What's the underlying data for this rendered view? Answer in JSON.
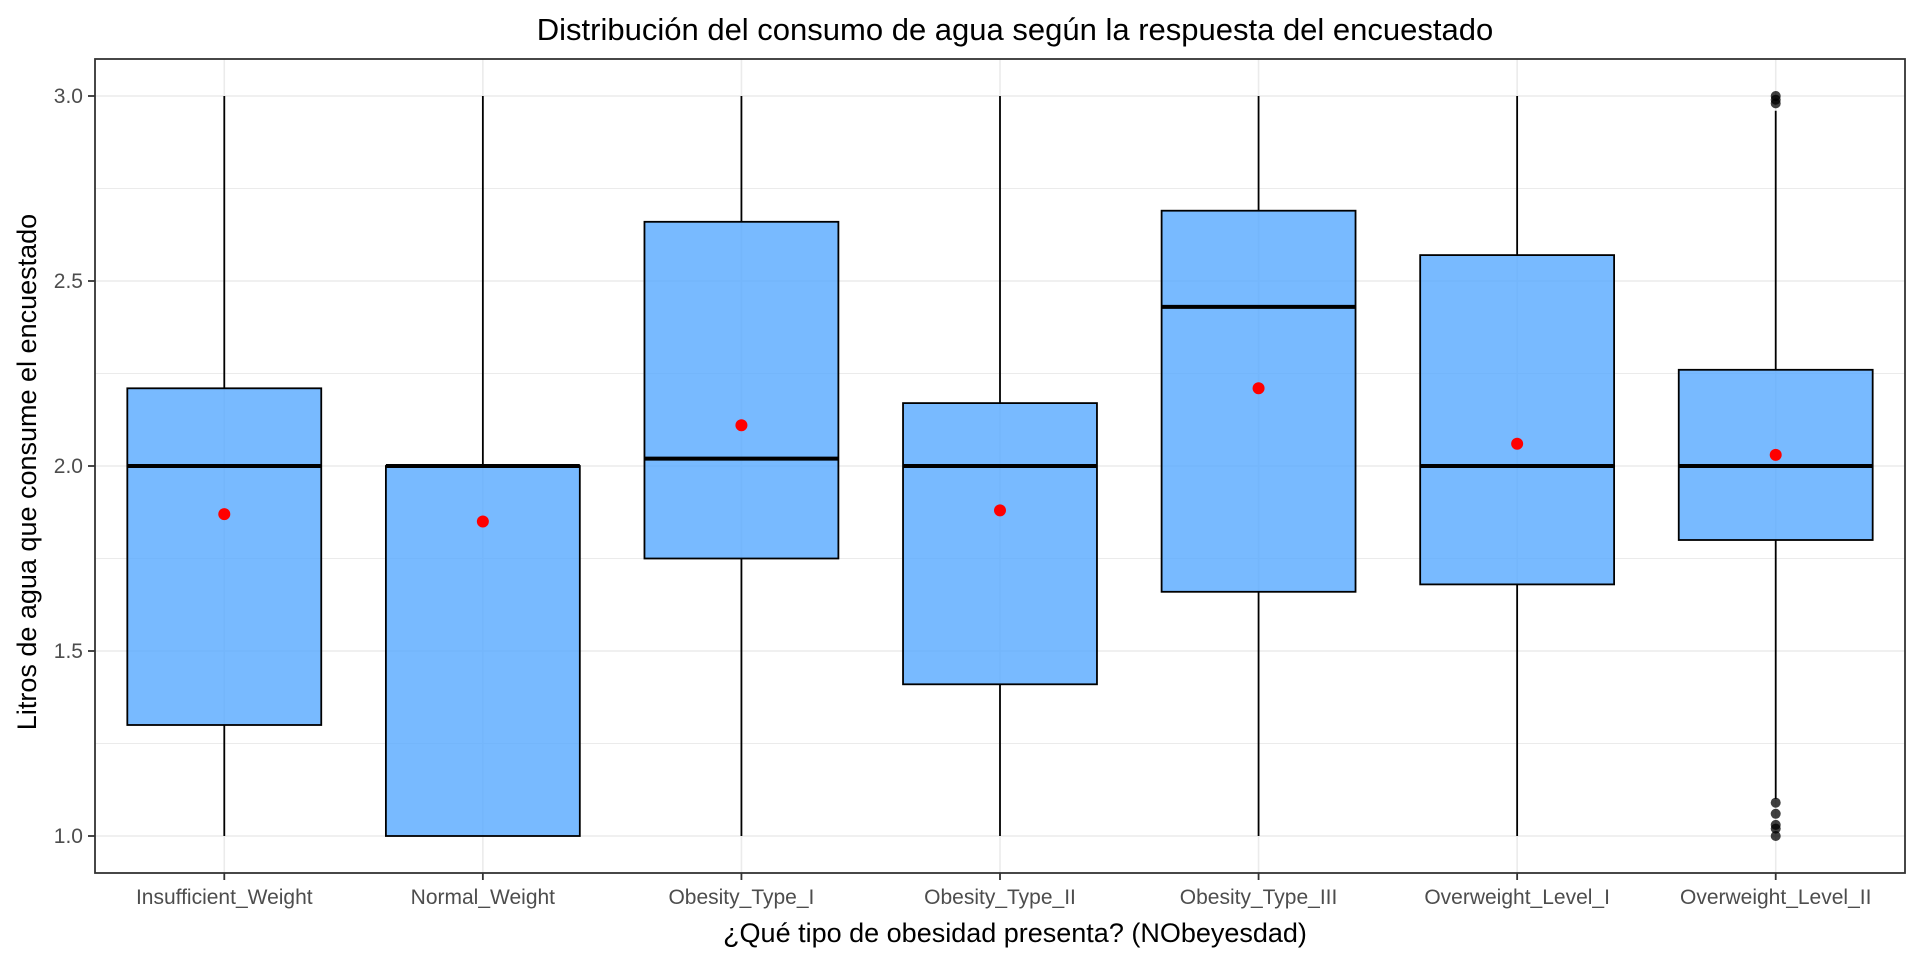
{
  "chart_data": {
    "type": "boxplot",
    "title": "Distribución del consumo de agua según la respuesta del encuestado",
    "xlabel": "¿Qué tipo de obesidad presenta? (NObeyesdad)",
    "ylabel": "Litros de agua que consume el encuestado",
    "categories": [
      "Insufficient_Weight",
      "Normal_Weight",
      "Obesity_Type_I",
      "Obesity_Type_II",
      "Obesity_Type_III",
      "Overweight_Level_I",
      "Overweight_Level_II"
    ],
    "boxes": [
      {
        "min": 1.0,
        "q1": 1.3,
        "median": 2.0,
        "q3": 2.21,
        "max": 3.0,
        "mean": 1.87,
        "outliers": []
      },
      {
        "min": 1.0,
        "q1": 1.0,
        "median": 2.0,
        "q3": 2.0,
        "max": 3.0,
        "mean": 1.85,
        "outliers": []
      },
      {
        "min": 1.0,
        "q1": 1.75,
        "median": 2.02,
        "q3": 2.66,
        "max": 3.0,
        "mean": 2.11,
        "outliers": []
      },
      {
        "min": 1.0,
        "q1": 1.41,
        "median": 2.0,
        "q3": 2.17,
        "max": 3.0,
        "mean": 1.88,
        "outliers": []
      },
      {
        "min": 1.0,
        "q1": 1.66,
        "median": 2.43,
        "q3": 2.69,
        "max": 3.0,
        "mean": 2.21,
        "outliers": []
      },
      {
        "min": 1.0,
        "q1": 1.68,
        "median": 2.0,
        "q3": 2.57,
        "max": 3.0,
        "mean": 2.06,
        "outliers": []
      },
      {
        "min": 1.1,
        "q1": 1.8,
        "median": 2.0,
        "q3": 2.26,
        "max": 2.96,
        "mean": 2.03,
        "outliers": [
          1.0,
          1.02,
          1.03,
          1.06,
          1.09,
          2.98,
          2.99,
          3.0
        ]
      }
    ],
    "ylim": [
      0.9,
      3.1
    ],
    "y_ticks": [
      1.0,
      1.5,
      2.0,
      2.5,
      3.0
    ],
    "y_tick_labels": [
      "1.0",
      "1.5",
      "2.0",
      "2.5",
      "3.0"
    ],
    "grid": true,
    "colors": {
      "box_fill": "#56a9ff",
      "box_fill_opacity": 0.8,
      "mean_point": "#ff0000",
      "outlier": "#000000",
      "grid": "#ebebeb",
      "panel_border": "#333333"
    }
  }
}
